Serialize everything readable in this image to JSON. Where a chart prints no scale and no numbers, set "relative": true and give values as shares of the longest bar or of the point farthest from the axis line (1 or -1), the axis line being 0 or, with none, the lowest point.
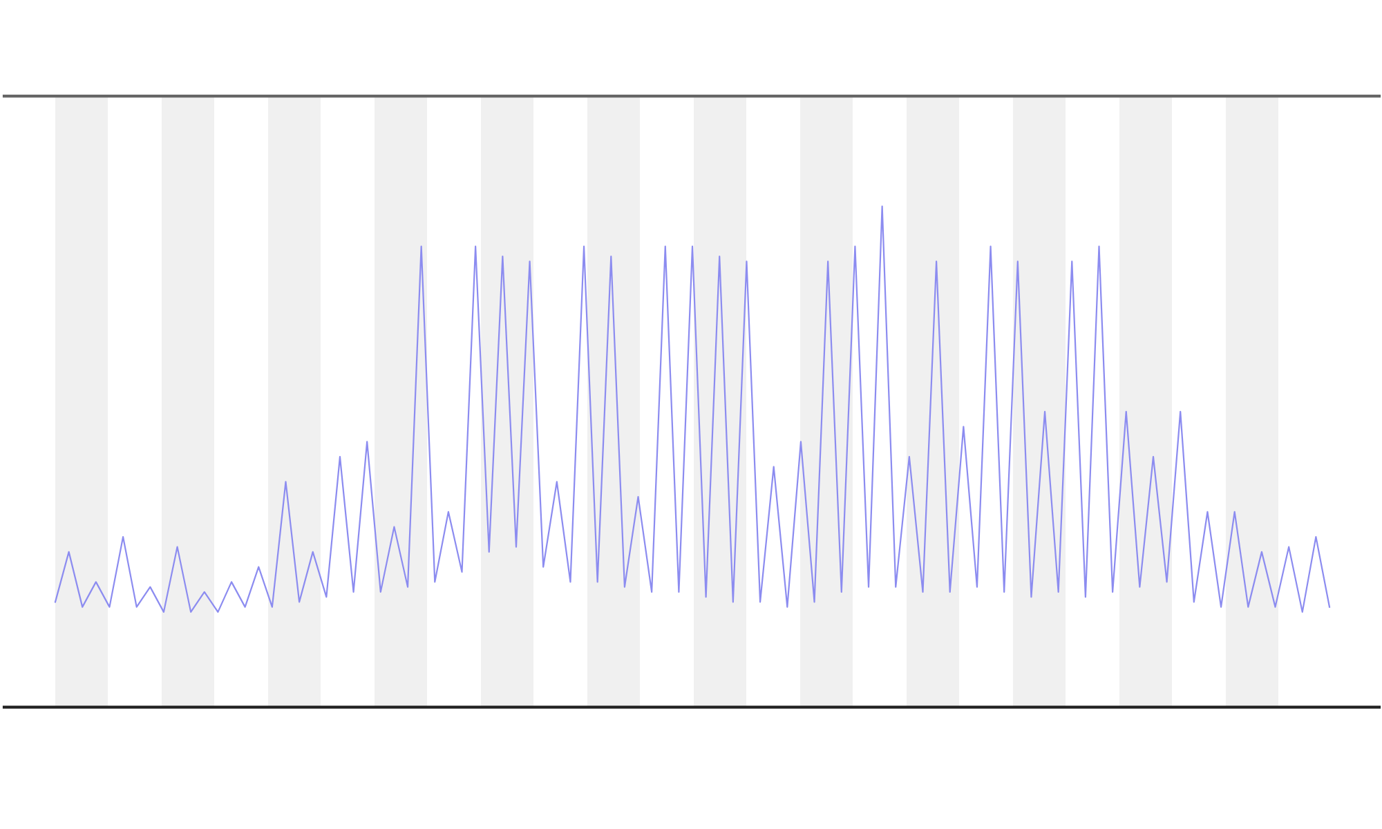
{
  "chart_data": {
    "type": "line",
    "relative": true,
    "grid": false,
    "categories": [
      null,
      null,
      null,
      null,
      null,
      null,
      null,
      null,
      null,
      null,
      null,
      null,
      null,
      null,
      null,
      null,
      null,
      null,
      null,
      null,
      null,
      null,
      null,
      null,
      null,
      null,
      null,
      null,
      null,
      null,
      null,
      null,
      null,
      null,
      null,
      null,
      null,
      null,
      null,
      null,
      null,
      null,
      null,
      null,
      null,
      null,
      null,
      null,
      null,
      null,
      null,
      null,
      null,
      null,
      null,
      null,
      null,
      null,
      null,
      null,
      null,
      null,
      null,
      null,
      null,
      null,
      null,
      null,
      null,
      null,
      null,
      null,
      null,
      null,
      null,
      null,
      null,
      null,
      null,
      null,
      null,
      null,
      null,
      null,
      null,
      null,
      null,
      null,
      null,
      null,
      null,
      null,
      null,
      null,
      null
    ],
    "series": [
      {
        "color": "#8c8cf0",
        "values": [
          0.21,
          0.31,
          0.2,
          0.25,
          0.2,
          0.34,
          0.2,
          0.24,
          0.19,
          0.32,
          0.19,
          0.23,
          0.19,
          0.25,
          0.2,
          0.28,
          0.2,
          0.45,
          0.21,
          0.31,
          0.22,
          0.5,
          0.23,
          0.53,
          0.23,
          0.36,
          0.24,
          0.92,
          0.25,
          0.39,
          0.27,
          0.92,
          0.31,
          0.9,
          0.32,
          0.89,
          0.28,
          0.45,
          0.25,
          0.92,
          0.25,
          0.9,
          0.24,
          0.42,
          0.23,
          0.92,
          0.23,
          0.92,
          0.22,
          0.9,
          0.21,
          0.89,
          0.21,
          0.48,
          0.2,
          0.53,
          0.21,
          0.89,
          0.23,
          0.92,
          0.24,
          1.0,
          0.24,
          0.5,
          0.23,
          0.89,
          0.23,
          0.56,
          0.24,
          0.92,
          0.23,
          0.89,
          0.22,
          0.59,
          0.23,
          0.89,
          0.22,
          0.92,
          0.23,
          0.59,
          0.24,
          0.5,
          0.25,
          0.59,
          0.21,
          0.39,
          0.2,
          0.39,
          0.2,
          0.31,
          0.2,
          0.32,
          0.19,
          0.34,
          0.2
        ]
      }
    ]
  }
}
